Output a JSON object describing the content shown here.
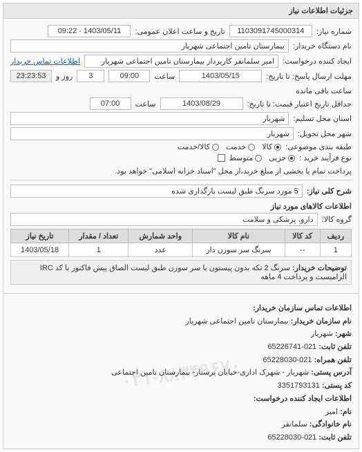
{
  "panel_title": "جزئیات اطلاعات نیاز",
  "request_no_label": "شماره نیاز:",
  "request_no": "1103091745000314",
  "announce_label": "تاریخ و ساعت اعلان عمومی:",
  "announce_value": "1403/05/11 - 09:22",
  "buyer_org_label": "نام دستگاه خریدار:",
  "buyer_org": "بیمارستان تامین اجتماعی شهریار",
  "creator_label": "ایجاد کننده درخواست:",
  "creator": "امیر سلمانفر کارپرداز بیمارستان تامین اجتماعی شهریار",
  "contact_link": "اطلاعات تماس خریدار",
  "deadline_label": "مهلت ارسال پاسخ: تا تاریخ:",
  "deadline_date": "1403/05/15",
  "deadline_time_label": "ساعت",
  "deadline_time": "09:00",
  "remain_label1": "روز و",
  "remain_days": "3",
  "remain_time": "23:23:53",
  "remain_label2": "ساعت باقی مانده",
  "validity_label": "حداقل تاریخ اعتبار قیمت: تا تاریخ:",
  "validity_date": "1403/08/29",
  "validity_time_label": "ساعت",
  "validity_time": "07:00",
  "province_label": "استان محل تسلیم:",
  "province": "شهریار",
  "city_label": "شهر محل تحویل:",
  "city": "شهریار",
  "category_label": "طبقه بندی موضوعی:",
  "cat_goods": "کالا",
  "cat_service": "خدمت",
  "cat_goods_service": "کالا/خدمت",
  "process_label": "نوع فرآیند خرید :",
  "proc_partial": "جزیی",
  "proc_medium": "متوسط",
  "proc_pay_label": "پرداخت تمام یا بخشی از مبلغ خرید،از محل \"اسناد خزانه اسلامی\" خواهد بود.",
  "summary_label": "شرح کلی نیاز:",
  "summary": "5 مورد سرنگ طبق لیست بارگذاری شده",
  "items_title": "اطلاعات کالاهای مورد نیاز",
  "group_label": "گروه کالا:",
  "group_value": "دارو، پزشکی و سلامت",
  "table": {
    "columns": [
      "ردیف",
      "کد کالا",
      "نام کالا",
      "واحد شمارش",
      "تعداد / مقدار",
      "تاریخ نیاز"
    ],
    "rows": [
      [
        "1",
        "--",
        "سرنگ سر سوزن دار",
        "عدد",
        "1",
        "1403/05/18"
      ]
    ]
  },
  "buyer_notes_label": "توضیحات خریدار:",
  "buyer_notes": "سرنگ 2 تکه بدون پیستون با سر سوزن طبق لیست الصاق پیش فاکتور با کد IRC الزامیست و پرداخت 4 ماهه",
  "contact_title": "اطلاعات تماس سازمان خریدار:",
  "org_name_label": "نام سازمان خریدار:",
  "org_name": "بیمارستان تامین اجتماعی شهریار",
  "city2_label": "شهر:",
  "city2": "شهریار",
  "phone_label": "تلفن ثابت:",
  "phone": "021-65226741",
  "mobile_label": "تلفن همراه:",
  "mobile": "021-65228030",
  "postal_label": "آدرس پستی:",
  "postal": "شهریار - شهرک اداری-خیابان پرستار- بیمارستان تامین اجتماعی",
  "postcode_label": "کد پستی:",
  "postcode": "3351793131",
  "creator_info_label": "اطلاعات ایجاد کننده درخواست:",
  "fname_label": "نام:",
  "fname": "امیر",
  "lname_label": "نام خانوادگی:",
  "lname": "سلمانفر",
  "phone2_label": "تلفن ثابت:",
  "phone2": "021-65228030",
  "watermark": "۰۲۱-۸۸۳۴۹۶۷۰"
}
